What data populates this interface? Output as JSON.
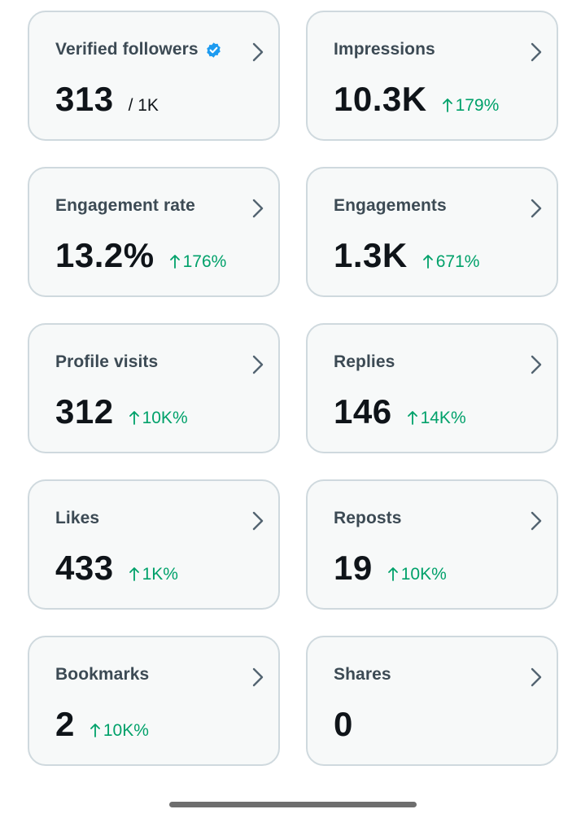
{
  "colors": {
    "card_bg": "#f7f9f9",
    "card_border": "#cfd9de",
    "value_text": "#0f1419",
    "label_text": "#3c4a54",
    "positive_delta": "#00a16a",
    "verified_badge": "#1d9bf0",
    "chevron": "#536471"
  },
  "icons": {
    "chevron": "chevron-right-icon",
    "delta": "arrow-up-icon",
    "verified": "verified-badge-icon"
  },
  "cards": [
    {
      "label": "Verified followers",
      "value": "313",
      "suffix": "/ 1K",
      "delta": "",
      "verified": true
    },
    {
      "label": "Impressions",
      "value": "10.3K",
      "suffix": "",
      "delta": "179%"
    },
    {
      "label": "Engagement rate",
      "value": "13.2%",
      "suffix": "",
      "delta": "176%"
    },
    {
      "label": "Engagements",
      "value": "1.3K",
      "suffix": "",
      "delta": "671%"
    },
    {
      "label": "Profile visits",
      "value": "312",
      "suffix": "",
      "delta": "10K%"
    },
    {
      "label": "Replies",
      "value": "146",
      "suffix": "",
      "delta": "14K%"
    },
    {
      "label": "Likes",
      "value": "433",
      "suffix": "",
      "delta": "1K%"
    },
    {
      "label": "Reposts",
      "value": "19",
      "suffix": "",
      "delta": "10K%"
    },
    {
      "label": "Bookmarks",
      "value": "2",
      "suffix": "",
      "delta": "10K%"
    },
    {
      "label": "Shares",
      "value": "0",
      "suffix": "",
      "delta": ""
    }
  ]
}
